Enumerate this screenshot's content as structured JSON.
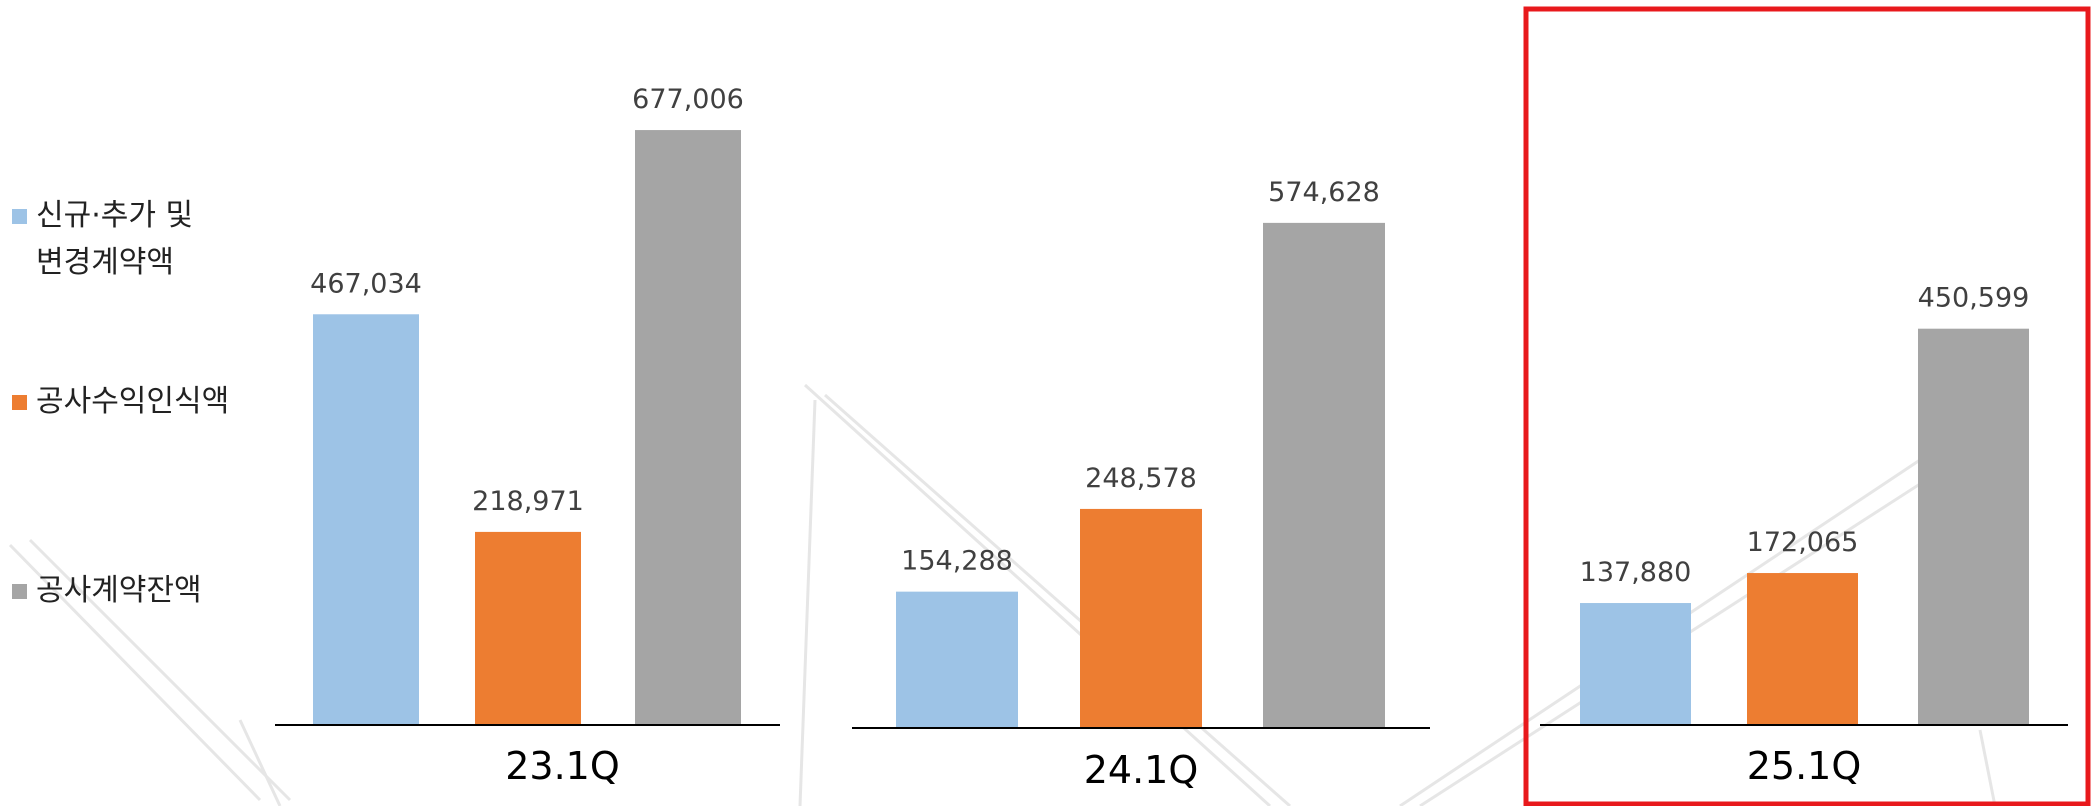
{
  "chart_data": {
    "type": "bar",
    "categories": [
      "23.1Q",
      "24.1Q",
      "25.1Q"
    ],
    "series": [
      {
        "name": "신규·추가 및 변경계약액",
        "color": "#9DC3E6",
        "values": [
          467034,
          154288,
          137880
        ],
        "labels": [
          "467,034",
          "154,288",
          "137,880"
        ]
      },
      {
        "name": "공사수익인식액",
        "color": "#ED7D31",
        "values": [
          218971,
          248578,
          172065
        ],
        "labels": [
          "218,971",
          "248,578",
          "172,065"
        ]
      },
      {
        "name": "공사계약잔액",
        "color": "#A5A5A5",
        "values": [
          677006,
          574628,
          450599
        ],
        "labels": [
          "677,006",
          "574,628",
          "450,599"
        ]
      }
    ],
    "legend": {
      "position": "left",
      "items": [
        {
          "lines": [
            "신규·추가 및",
            "변경계약액"
          ],
          "color": "#9DC3E6"
        },
        {
          "lines": [
            "공사수익인식액"
          ],
          "color": "#ED7D31"
        },
        {
          "lines": [
            "공사계약잔액"
          ],
          "color": "#A5A5A5"
        }
      ]
    },
    "highlight": {
      "category": "25.1Q",
      "color": "#E8191C"
    },
    "title": "",
    "xlabel": "",
    "ylabel": ""
  }
}
